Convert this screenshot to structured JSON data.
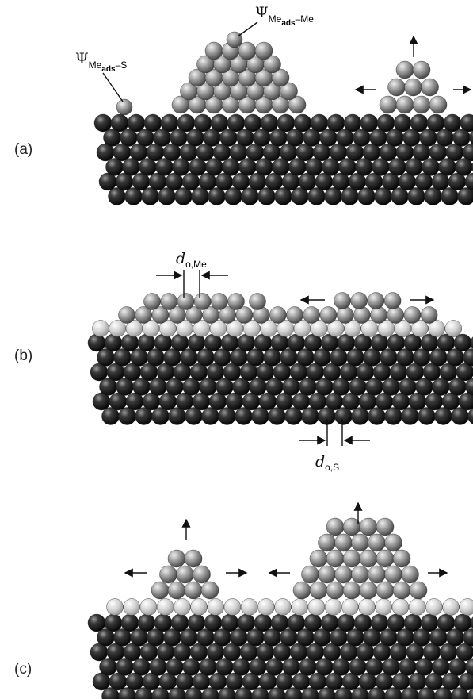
{
  "panels": [
    {
      "label": "(a)"
    },
    {
      "label": "(b)"
    },
    {
      "label": "(c)"
    }
  ],
  "annotations": {
    "psi_me_ads_s": {
      "symbol": "Ψ",
      "subscript": "Me",
      "sub_subscript": "ads",
      "suffix": "–S"
    },
    "psi_me_ads_me": {
      "symbol": "Ψ",
      "subscript": "Me",
      "sub_subscript": "ads",
      "suffix": "–Me"
    },
    "d_o_me": {
      "symbol": "d",
      "subscript": "o,Me"
    },
    "d_o_s": {
      "symbol": "d",
      "subscript": "o,S"
    }
  }
}
